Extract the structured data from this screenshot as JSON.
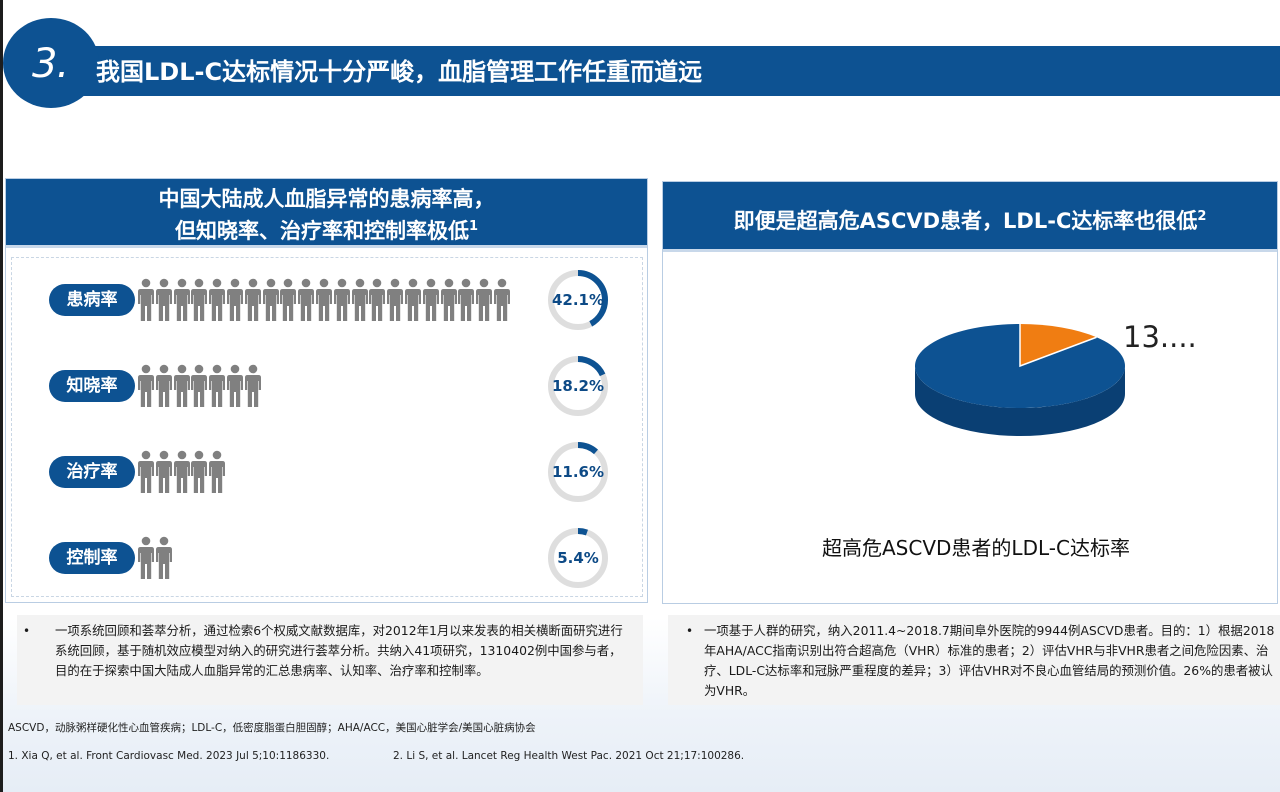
{
  "header": {
    "number": "3.",
    "title": "我国LDL-C达标情况十分严峻，血脂管理工作任重而道远"
  },
  "left_panel": {
    "title_line1": "中国大陆成人血脂异常的患病率高，",
    "title_line2": "但知晓率、治疗率和控制率极低",
    "title_ref": "1",
    "rows": [
      {
        "label": "患病率",
        "percent_text": "42.1%",
        "percent": 42.1,
        "people_count": 21
      },
      {
        "label": "知晓率",
        "percent_text": "18.2%",
        "percent": 18.2,
        "people_count": 7
      },
      {
        "label": "治疗率",
        "percent_text": "11.6%",
        "percent": 11.6,
        "people_count": 5
      },
      {
        "label": "控制率",
        "percent_text": "5.4%",
        "percent": 5.4,
        "people_count": 2
      }
    ],
    "note": "一项系统回顾和荟萃分析，通过检索6个权威文献数据库，对2012年1月以来发表的相关横断面研究进行系统回顾，基于随机效应模型对纳入的研究进行荟萃分析。共纳入41项研究，1310402例中国参与者，目的在于探索中国大陆成人血脂异常的汇总患病率、认知率、治疗率和控制率。"
  },
  "right_panel": {
    "title": "即便是超高危ASCVD患者，LDL-C达标率也很低",
    "title_ref": "2",
    "note": "一项基于人群的研究，纳入2011.4~2018.7期间阜外医院的9944例ASCVD患者。目的：1）根据2018年AHA/ACC指南识别出符合超高危（VHR）标准的患者；2）评估VHR与非VHR患者之间危险因素、治疗、LDL-C达标率和冠脉严重程度的差异；3）评估VHR对不良心血管结局的预测价值。26%的患者被认为VHR。"
  },
  "chart_data": {
    "type": "pie",
    "title": "超高危ASCVD患者的LDL-C达标率",
    "slice_label": "13....",
    "slices": [
      {
        "value": 13,
        "color": "#f07d12"
      },
      {
        "value": 87,
        "color": "#0d5292"
      }
    ]
  },
  "footer": {
    "abbreviations": "ASCVD，动脉粥样硬化性心血管疾病；LDL-C，低密度脂蛋白胆固醇；AHA/ACC，美国心脏学会/美国心脏病协会",
    "ref1": "1. Xia Q, et al. Front Cardiovasc Med. 2023 Jul 5;10:1186330.",
    "ref2": "2. Li S, et al. Lancet Reg Health West Pac. 2021 Oct 21;17:100286."
  },
  "colors": {
    "primary": "#0d5292",
    "accent": "#f07d12",
    "person": "#808080",
    "ring_track": "#dedede"
  },
  "icons": {
    "person": "person-icon"
  }
}
